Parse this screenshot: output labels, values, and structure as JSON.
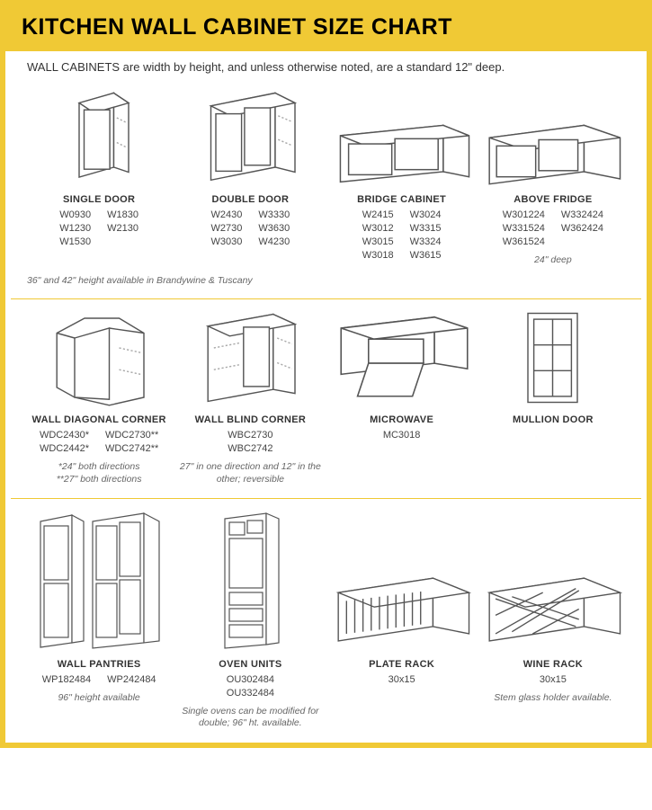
{
  "colors": {
    "border": "#f0c935",
    "stroke": "#555555",
    "fill": "#ffffff",
    "shelf": "#aaaaaa"
  },
  "title": "KITCHEN WALL CABINET SIZE CHART",
  "subtitle": "WALL CABINETS are width by height, and unless otherwise noted, are a standard 12\" deep.",
  "row1": {
    "items": [
      {
        "name": "SINGLE DOOR",
        "codes_cols": [
          [
            "W0930",
            "W1230",
            "W1530"
          ],
          [
            "W1830",
            "W2130"
          ]
        ],
        "note": ""
      },
      {
        "name": "DOUBLE DOOR",
        "codes_cols": [
          [
            "W2430",
            "W2730",
            "W3030"
          ],
          [
            "W3330",
            "W3630",
            "W4230"
          ]
        ],
        "note": ""
      },
      {
        "name": "BRIDGE CABINET",
        "codes_cols": [
          [
            "W2415",
            "W3012",
            "W3015",
            "W3018"
          ],
          [
            "W3024",
            "W3315",
            "W3324",
            "W3615"
          ]
        ],
        "note": ""
      },
      {
        "name": "ABOVE FRIDGE",
        "codes_cols": [
          [
            "W301224",
            "W331524",
            "W361524"
          ],
          [
            "W332424",
            "W362424"
          ]
        ],
        "note": "24\" deep"
      }
    ],
    "row_note": "36\" and 42\" height available in Brandywine & Tuscany"
  },
  "row2": {
    "items": [
      {
        "name": "WALL DIAGONAL CORNER",
        "codes_cols": [
          [
            "WDC2430*",
            "WDC2442*"
          ],
          [
            "WDC2730**",
            "WDC2742**"
          ]
        ],
        "note": "*24\" both directions\n**27\" both directions"
      },
      {
        "name": "WALL BLIND CORNER",
        "codes_cols": [
          [
            "WBC2730",
            "WBC2742"
          ]
        ],
        "note": "27\" in one direction and 12\" in the other; reversible"
      },
      {
        "name": "MICROWAVE",
        "codes_cols": [
          [
            "MC3018"
          ]
        ],
        "note": ""
      },
      {
        "name": "MULLION DOOR",
        "codes_cols": [],
        "note": ""
      }
    ]
  },
  "row3": {
    "items": [
      {
        "name": "WALL PANTRIES",
        "codes_cols": [
          [
            "WP182484"
          ],
          [
            "WP242484"
          ]
        ],
        "note": "96\" height available"
      },
      {
        "name": "OVEN UNITS",
        "codes_cols": [
          [
            "OU302484",
            "OU332484"
          ]
        ],
        "note": "Single ovens can be modified for double; 96\" ht. available."
      },
      {
        "name": "PLATE RACK",
        "codes_cols": [
          [
            "30x15"
          ]
        ],
        "note": ""
      },
      {
        "name": "WINE RACK",
        "codes_cols": [
          [
            "30x15"
          ]
        ],
        "note": "Stem glass holder available."
      }
    ]
  }
}
